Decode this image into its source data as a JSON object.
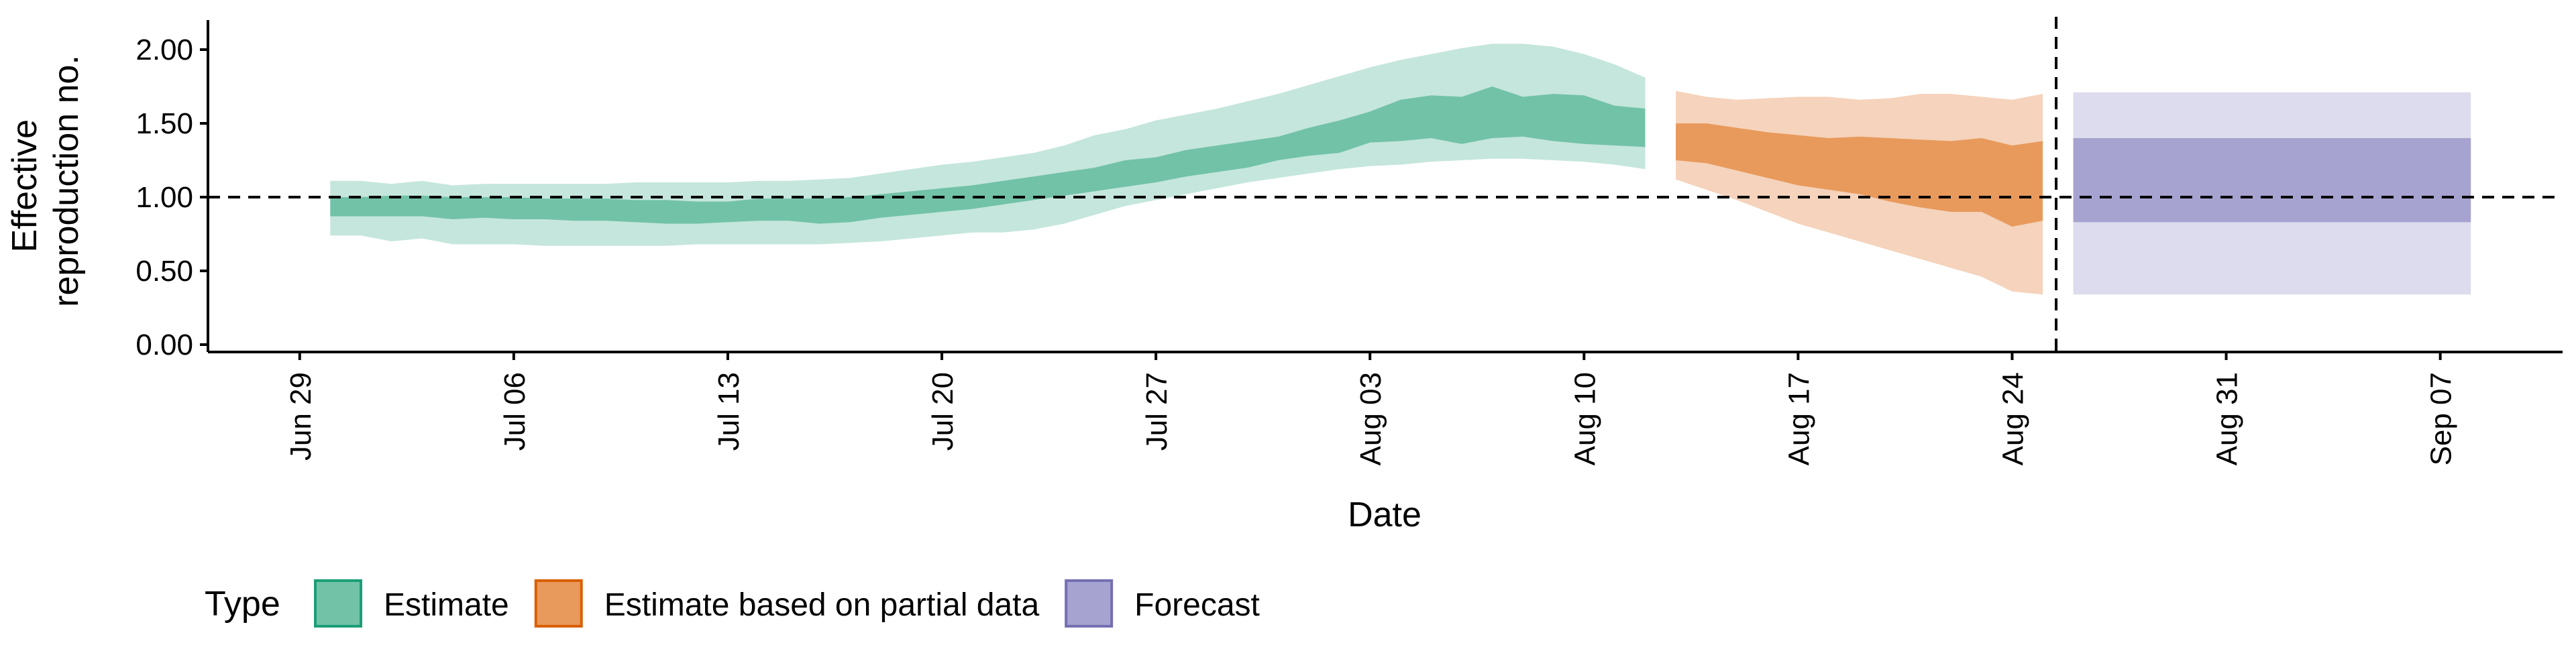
{
  "chart_data": {
    "type": "area",
    "title": "",
    "xlabel": "Date",
    "ylabel_lines": [
      "Effective",
      "reproduction no."
    ],
    "ylim": [
      -0.05,
      2.2
    ],
    "xlim": [
      "2020-06-26",
      "2020-09-11"
    ],
    "grid": false,
    "reference_line": {
      "y": 1.0,
      "style": "dashed"
    },
    "vertical_reference_line": {
      "x": "2020-08-25",
      "style": "dashed"
    },
    "y_ticks": [
      {
        "value": 0.0,
        "label": "0.00"
      },
      {
        "value": 0.5,
        "label": "0.50"
      },
      {
        "value": 1.0,
        "label": "1.00"
      },
      {
        "value": 1.5,
        "label": "1.50"
      },
      {
        "value": 2.0,
        "label": "2.00"
      }
    ],
    "x_ticks": [
      {
        "value": "2020-06-29",
        "label": "Jun 29"
      },
      {
        "value": "2020-07-06",
        "label": "Jul 06"
      },
      {
        "value": "2020-07-13",
        "label": "Jul 13"
      },
      {
        "value": "2020-07-20",
        "label": "Jul 20"
      },
      {
        "value": "2020-07-27",
        "label": "Jul 27"
      },
      {
        "value": "2020-08-03",
        "label": "Aug 03"
      },
      {
        "value": "2020-08-10",
        "label": "Aug 10"
      },
      {
        "value": "2020-08-17",
        "label": "Aug 17"
      },
      {
        "value": "2020-08-24",
        "label": "Aug 24"
      },
      {
        "value": "2020-08-31",
        "label": "Aug 31"
      },
      {
        "value": "2020-09-07",
        "label": "Sep 07"
      }
    ],
    "legend": {
      "title": "Type",
      "placement": "bottom-left",
      "entries": [
        {
          "label": "Estimate",
          "fill": "#72c2a8",
          "border": "#1b9e77"
        },
        {
          "label": "Estimate based on partial data",
          "fill": "#e89a5c",
          "border": "#d95f02"
        },
        {
          "label": "Forecast",
          "fill": "#a7a3d0",
          "border": "#7570b3"
        }
      ]
    },
    "series": [
      {
        "name": "Estimate",
        "outer_color": "#c5e6dc",
        "inner_color": "#72c2a8",
        "x": [
          "2020-06-30",
          "2020-07-01",
          "2020-07-02",
          "2020-07-03",
          "2020-07-04",
          "2020-07-05",
          "2020-07-06",
          "2020-07-07",
          "2020-07-08",
          "2020-07-09",
          "2020-07-10",
          "2020-07-11",
          "2020-07-12",
          "2020-07-13",
          "2020-07-14",
          "2020-07-15",
          "2020-07-16",
          "2020-07-17",
          "2020-07-18",
          "2020-07-19",
          "2020-07-20",
          "2020-07-21",
          "2020-07-22",
          "2020-07-23",
          "2020-07-24",
          "2020-07-25",
          "2020-07-26",
          "2020-07-27",
          "2020-07-28",
          "2020-07-29",
          "2020-07-30",
          "2020-07-31",
          "2020-08-01",
          "2020-08-02",
          "2020-08-03",
          "2020-08-04",
          "2020-08-05",
          "2020-08-06",
          "2020-08-07",
          "2020-08-08",
          "2020-08-09",
          "2020-08-10",
          "2020-08-11",
          "2020-08-12"
        ],
        "lower90": [
          0.74,
          0.74,
          0.7,
          0.72,
          0.68,
          0.68,
          0.68,
          0.67,
          0.67,
          0.67,
          0.67,
          0.67,
          0.68,
          0.68,
          0.68,
          0.68,
          0.68,
          0.69,
          0.7,
          0.72,
          0.74,
          0.76,
          0.76,
          0.78,
          0.82,
          0.88,
          0.94,
          0.98,
          1.02,
          1.06,
          1.1,
          1.13,
          1.16,
          1.19,
          1.21,
          1.22,
          1.24,
          1.25,
          1.26,
          1.26,
          1.25,
          1.24,
          1.22,
          1.19
        ],
        "lower50": [
          0.87,
          0.87,
          0.87,
          0.87,
          0.85,
          0.86,
          0.85,
          0.85,
          0.84,
          0.84,
          0.83,
          0.82,
          0.82,
          0.83,
          0.84,
          0.84,
          0.82,
          0.83,
          0.86,
          0.88,
          0.9,
          0.92,
          0.95,
          0.98,
          1.01,
          1.04,
          1.07,
          1.1,
          1.14,
          1.17,
          1.2,
          1.25,
          1.28,
          1.3,
          1.37,
          1.38,
          1.4,
          1.36,
          1.4,
          1.41,
          1.38,
          1.36,
          1.35,
          1.34
        ],
        "upper50": [
          1.0,
          1.0,
          1.01,
          1.01,
          1.0,
          1.0,
          1.0,
          0.99,
          0.99,
          0.99,
          0.98,
          0.98,
          0.97,
          0.97,
          0.99,
          0.99,
          0.99,
          1.0,
          1.02,
          1.04,
          1.06,
          1.08,
          1.11,
          1.14,
          1.17,
          1.2,
          1.25,
          1.27,
          1.32,
          1.35,
          1.38,
          1.41,
          1.47,
          1.52,
          1.58,
          1.66,
          1.69,
          1.68,
          1.75,
          1.68,
          1.7,
          1.69,
          1.62,
          1.6
        ],
        "upper90": [
          1.11,
          1.11,
          1.09,
          1.11,
          1.08,
          1.09,
          1.09,
          1.09,
          1.09,
          1.09,
          1.1,
          1.1,
          1.1,
          1.1,
          1.11,
          1.11,
          1.12,
          1.13,
          1.16,
          1.19,
          1.22,
          1.24,
          1.27,
          1.3,
          1.35,
          1.42,
          1.46,
          1.52,
          1.56,
          1.6,
          1.65,
          1.7,
          1.76,
          1.82,
          1.88,
          1.93,
          1.97,
          2.01,
          2.04,
          2.04,
          2.02,
          1.97,
          1.9,
          1.81
        ]
      },
      {
        "name": "Estimate based on partial data",
        "outer_color": "#f5d3bc",
        "inner_color": "#e89a5c",
        "x": [
          "2020-08-13",
          "2020-08-14",
          "2020-08-15",
          "2020-08-16",
          "2020-08-17",
          "2020-08-18",
          "2020-08-19",
          "2020-08-20",
          "2020-08-21",
          "2020-08-22",
          "2020-08-23",
          "2020-08-24",
          "2020-08-25"
        ],
        "lower90": [
          1.12,
          1.05,
          0.98,
          0.9,
          0.82,
          0.76,
          0.7,
          0.64,
          0.58,
          0.52,
          0.46,
          0.36,
          0.34
        ],
        "lower50": [
          1.25,
          1.23,
          1.18,
          1.13,
          1.08,
          1.05,
          1.02,
          0.97,
          0.93,
          0.9,
          0.9,
          0.8,
          0.84
        ],
        "upper50": [
          1.5,
          1.5,
          1.47,
          1.44,
          1.42,
          1.4,
          1.41,
          1.4,
          1.39,
          1.38,
          1.4,
          1.35,
          1.38
        ],
        "upper90": [
          1.72,
          1.68,
          1.66,
          1.67,
          1.68,
          1.68,
          1.66,
          1.67,
          1.7,
          1.7,
          1.68,
          1.66,
          1.7
        ]
      },
      {
        "name": "Forecast",
        "outer_color": "#dddcee",
        "inner_color": "#a7a3d0",
        "x": [
          "2020-08-26",
          "2020-09-08"
        ],
        "lower90": [
          0.34,
          0.34
        ],
        "lower50": [
          0.83,
          0.83
        ],
        "upper50": [
          1.4,
          1.4
        ],
        "upper90": [
          1.71,
          1.71
        ]
      }
    ]
  }
}
